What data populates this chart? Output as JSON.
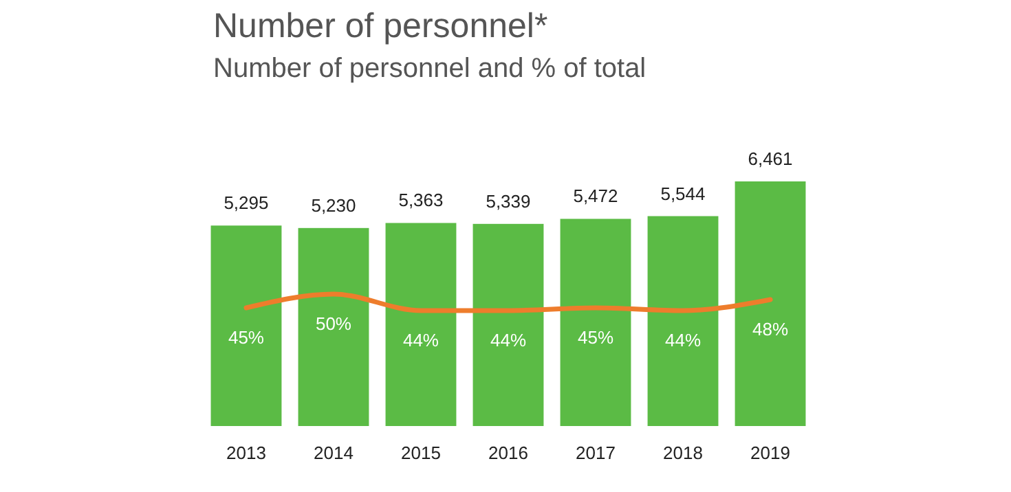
{
  "chart_data": {
    "type": "bar",
    "title": "Number of personnel*",
    "subtitle": "Number of personnel and % of total",
    "categories": [
      "2013",
      "2014",
      "2015",
      "2016",
      "2017",
      "2018",
      "2019"
    ],
    "series": [
      {
        "color": "#5bbb45",
        "values": [
          5295,
          5230,
          5363,
          5339,
          5472,
          5544,
          6461
        ],
        "value_labels": [
          "5,295",
          "5,230",
          "5,363",
          "5,339",
          "5,472",
          "5,544",
          "6,461"
        ]
      },
      {
        "type": "line",
        "axis": "y2",
        "color": "#ee7d2c",
        "values": [
          45,
          50,
          44,
          44,
          45,
          44,
          48
        ],
        "value_labels": [
          "45%",
          "50%",
          "44%",
          "44%",
          "45%",
          "44%",
          "48%"
        ]
      }
    ]
  }
}
